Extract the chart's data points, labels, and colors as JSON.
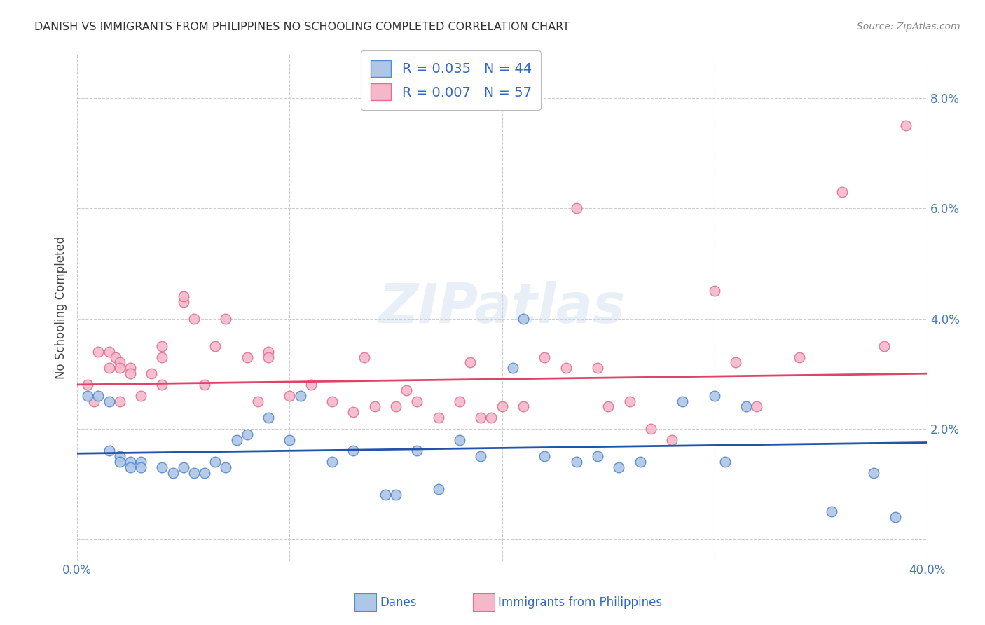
{
  "title": "DANISH VS IMMIGRANTS FROM PHILIPPINES NO SCHOOLING COMPLETED CORRELATION CHART",
  "source": "Source: ZipAtlas.com",
  "ylabel": "No Schooling Completed",
  "xlim": [
    0.0,
    0.4
  ],
  "ylim": [
    -0.004,
    0.088
  ],
  "yticks": [
    0.0,
    0.02,
    0.04,
    0.06,
    0.08
  ],
  "ytick_labels": [
    "",
    "2.0%",
    "4.0%",
    "6.0%",
    "8.0%"
  ],
  "xticks": [
    0.0,
    0.1,
    0.2,
    0.3,
    0.4
  ],
  "xtick_labels": [
    "0.0%",
    "",
    "",
    "",
    "40.0%"
  ],
  "background_color": "#ffffff",
  "grid_color": "#cccccc",
  "danes_color": "#aec6e8",
  "danes_edge_color": "#5588cc",
  "philippines_color": "#f5b8cb",
  "philippines_edge_color": "#e07090",
  "danes_line_color": "#2255aa",
  "philippines_line_color": "#dd4466",
  "danes_R": 0.035,
  "danes_N": 44,
  "philippines_R": 0.007,
  "philippines_N": 57,
  "danes_trend_x": [
    0.0,
    0.4
  ],
  "danes_trend_y": [
    0.0155,
    0.0175
  ],
  "philippines_trend_x": [
    0.0,
    0.4
  ],
  "philippines_trend_y": [
    0.028,
    0.03
  ],
  "danes_x": [
    0.005,
    0.01,
    0.015,
    0.015,
    0.02,
    0.02,
    0.025,
    0.025,
    0.03,
    0.03,
    0.04,
    0.045,
    0.05,
    0.055,
    0.06,
    0.065,
    0.07,
    0.075,
    0.08,
    0.09,
    0.1,
    0.105,
    0.12,
    0.13,
    0.145,
    0.15,
    0.16,
    0.17,
    0.18,
    0.19,
    0.205,
    0.21,
    0.22,
    0.235,
    0.245,
    0.255,
    0.265,
    0.285,
    0.3,
    0.305,
    0.315,
    0.355,
    0.375,
    0.385
  ],
  "danes_y": [
    0.026,
    0.026,
    0.025,
    0.016,
    0.015,
    0.014,
    0.014,
    0.013,
    0.014,
    0.013,
    0.013,
    0.012,
    0.013,
    0.012,
    0.012,
    0.014,
    0.013,
    0.018,
    0.019,
    0.022,
    0.018,
    0.026,
    0.014,
    0.016,
    0.008,
    0.008,
    0.016,
    0.009,
    0.018,
    0.015,
    0.031,
    0.04,
    0.015,
    0.014,
    0.015,
    0.013,
    0.014,
    0.025,
    0.026,
    0.014,
    0.024,
    0.005,
    0.012,
    0.004
  ],
  "philippines_x": [
    0.005,
    0.008,
    0.01,
    0.015,
    0.015,
    0.018,
    0.02,
    0.02,
    0.02,
    0.025,
    0.025,
    0.03,
    0.035,
    0.04,
    0.04,
    0.04,
    0.05,
    0.05,
    0.055,
    0.06,
    0.065,
    0.07,
    0.08,
    0.085,
    0.09,
    0.09,
    0.1,
    0.11,
    0.12,
    0.13,
    0.135,
    0.14,
    0.15,
    0.155,
    0.16,
    0.17,
    0.18,
    0.185,
    0.19,
    0.195,
    0.2,
    0.21,
    0.22,
    0.23,
    0.235,
    0.245,
    0.25,
    0.26,
    0.27,
    0.28,
    0.3,
    0.31,
    0.32,
    0.34,
    0.36,
    0.38,
    0.39
  ],
  "philippines_y": [
    0.028,
    0.025,
    0.034,
    0.034,
    0.031,
    0.033,
    0.032,
    0.031,
    0.025,
    0.031,
    0.03,
    0.026,
    0.03,
    0.033,
    0.035,
    0.028,
    0.043,
    0.044,
    0.04,
    0.028,
    0.035,
    0.04,
    0.033,
    0.025,
    0.034,
    0.033,
    0.026,
    0.028,
    0.025,
    0.023,
    0.033,
    0.024,
    0.024,
    0.027,
    0.025,
    0.022,
    0.025,
    0.032,
    0.022,
    0.022,
    0.024,
    0.024,
    0.033,
    0.031,
    0.06,
    0.031,
    0.024,
    0.025,
    0.02,
    0.018,
    0.045,
    0.032,
    0.024,
    0.033,
    0.063,
    0.035,
    0.075
  ],
  "watermark_text": "ZIPatlas",
  "marker_size": 110
}
